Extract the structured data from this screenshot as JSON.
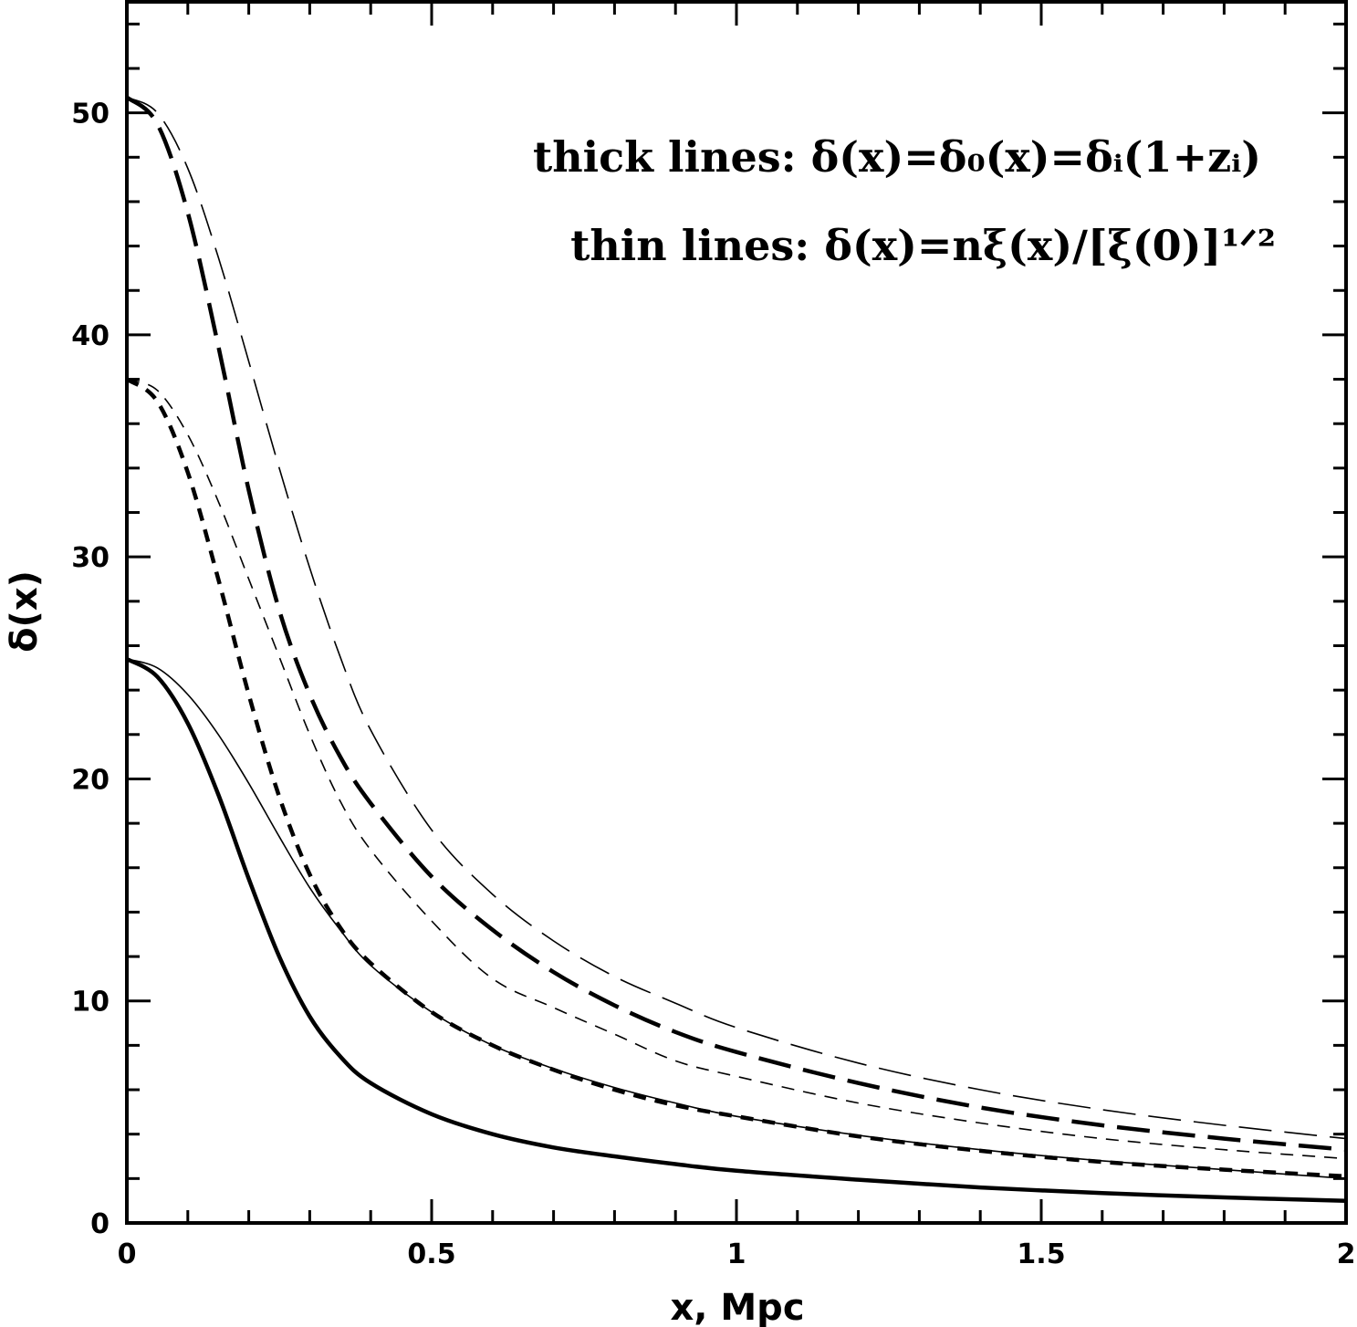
{
  "chart_data": {
    "type": "line",
    "xlabel": "x, Mpc",
    "ylabel": "δ(x)",
    "xlim": [
      0,
      2
    ],
    "ylim": [
      0,
      55
    ],
    "x_ticks": [
      "0",
      "0.5",
      "1",
      "1.5",
      "2"
    ],
    "y_ticks": [
      "0",
      "10",
      "20",
      "30",
      "40",
      "50"
    ],
    "grid": false,
    "legend": {
      "placement": "top-right",
      "thick": "thick lines: δ(x)=δ₀(x)=δᵢ(1+zᵢ)",
      "thin": "thin lines: δ(x)=nξ(x)/[ξ(0)]¹ᐟ²"
    },
    "series": [
      {
        "line": "thick solid",
        "x": [
          0,
          0.05,
          0.1,
          0.15,
          0.2,
          0.25,
          0.3,
          0.35,
          0.4,
          0.5,
          0.6,
          0.7,
          0.8,
          0.9,
          1.0,
          1.2,
          1.4,
          1.6,
          1.8,
          2.0
        ],
        "y": [
          25.4,
          24.6,
          22.5,
          19.3,
          15.5,
          12.0,
          9.3,
          7.5,
          6.3,
          4.9,
          4.0,
          3.4,
          3.0,
          2.65,
          2.35,
          1.95,
          1.6,
          1.35,
          1.15,
          1.0
        ]
      },
      {
        "line": "thin solid",
        "x": [
          0,
          0.05,
          0.1,
          0.15,
          0.2,
          0.25,
          0.3,
          0.35,
          0.4,
          0.5,
          0.6,
          0.7,
          0.8,
          0.9,
          1.0,
          1.2,
          1.4,
          1.6,
          1.8,
          2.0
        ],
        "y": [
          25.4,
          25.0,
          23.8,
          22.0,
          19.8,
          17.4,
          15.1,
          13.2,
          11.6,
          9.5,
          8.0,
          6.95,
          6.1,
          5.4,
          4.8,
          3.95,
          3.3,
          2.8,
          2.4,
          2.0
        ]
      },
      {
        "line": "thick short-dash",
        "x": [
          0,
          0.05,
          0.1,
          0.15,
          0.2,
          0.25,
          0.3,
          0.35,
          0.4,
          0.5,
          0.6,
          0.7,
          0.8,
          0.9,
          1.0,
          1.2,
          1.4,
          1.6,
          1.8,
          2.0
        ],
        "y": [
          38.0,
          37.0,
          33.8,
          29.0,
          23.8,
          19.2,
          15.7,
          13.3,
          11.7,
          9.5,
          8.0,
          6.9,
          6.0,
          5.3,
          4.8,
          3.9,
          3.25,
          2.75,
          2.4,
          2.1
        ]
      },
      {
        "line": "thin short-dash",
        "x": [
          0,
          0.05,
          0.1,
          0.15,
          0.2,
          0.25,
          0.3,
          0.35,
          0.4,
          0.5,
          0.6,
          0.7,
          0.8,
          0.9,
          1.0,
          1.2,
          1.4,
          1.6,
          1.8,
          2.0
        ],
        "y": [
          38.0,
          37.5,
          35.5,
          32.5,
          29.0,
          25.5,
          22.0,
          19.0,
          16.8,
          13.6,
          11.0,
          9.7,
          8.5,
          7.3,
          6.6,
          5.4,
          4.5,
          3.8,
          3.3,
          2.9
        ]
      },
      {
        "line": "thick long-dash",
        "x": [
          0,
          0.05,
          0.1,
          0.15,
          0.2,
          0.25,
          0.3,
          0.35,
          0.4,
          0.5,
          0.6,
          0.7,
          0.8,
          0.9,
          1.0,
          1.2,
          1.4,
          1.6,
          1.8,
          2.0
        ],
        "y": [
          50.7,
          49.5,
          45.5,
          39.5,
          33.0,
          27.6,
          23.8,
          21.0,
          18.9,
          15.6,
          13.2,
          11.3,
          9.8,
          8.6,
          7.7,
          6.3,
          5.2,
          4.4,
          3.8,
          3.3
        ]
      },
      {
        "line": "thin long-dash",
        "x": [
          0,
          0.05,
          0.1,
          0.15,
          0.2,
          0.25,
          0.3,
          0.35,
          0.4,
          0.5,
          0.6,
          0.7,
          0.8,
          0.9,
          1.0,
          1.2,
          1.4,
          1.6,
          1.8,
          2.0
        ],
        "y": [
          50.7,
          50.0,
          47.5,
          43.5,
          38.8,
          34.0,
          29.5,
          25.5,
          22.2,
          17.7,
          14.8,
          12.7,
          11.1,
          9.9,
          8.8,
          7.2,
          6.0,
          5.1,
          4.4,
          3.8
        ]
      }
    ]
  }
}
